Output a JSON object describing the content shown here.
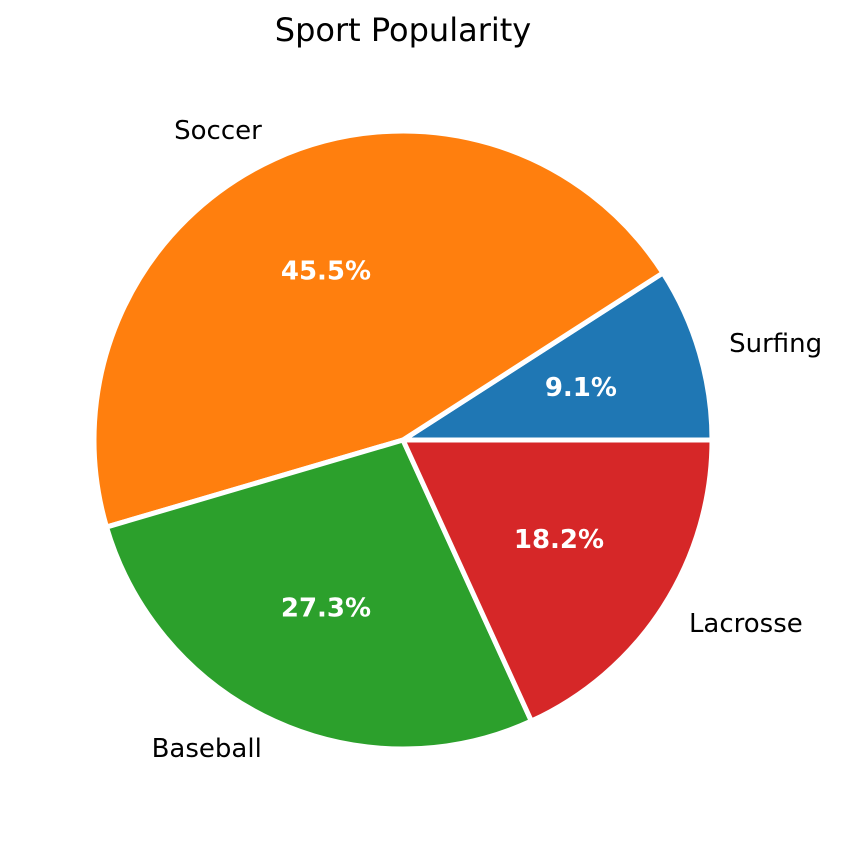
{
  "chart_data": {
    "type": "pie",
    "title": "Sport Popularity",
    "categories": [
      "Surfing",
      "Soccer",
      "Baseball",
      "Lacrosse"
    ],
    "values": [
      9.1,
      45.5,
      27.3,
      18.2
    ],
    "percent_labels": [
      "9.1%",
      "45.5%",
      "27.3%",
      "18.2%"
    ],
    "colors": [
      "#1f77b4",
      "#ff7f0e",
      "#2ca02c",
      "#d62728"
    ],
    "start_angle_deg": 0,
    "direction": "counterclockwise",
    "wedge_edge_color": "#ffffff",
    "legend": "none"
  }
}
